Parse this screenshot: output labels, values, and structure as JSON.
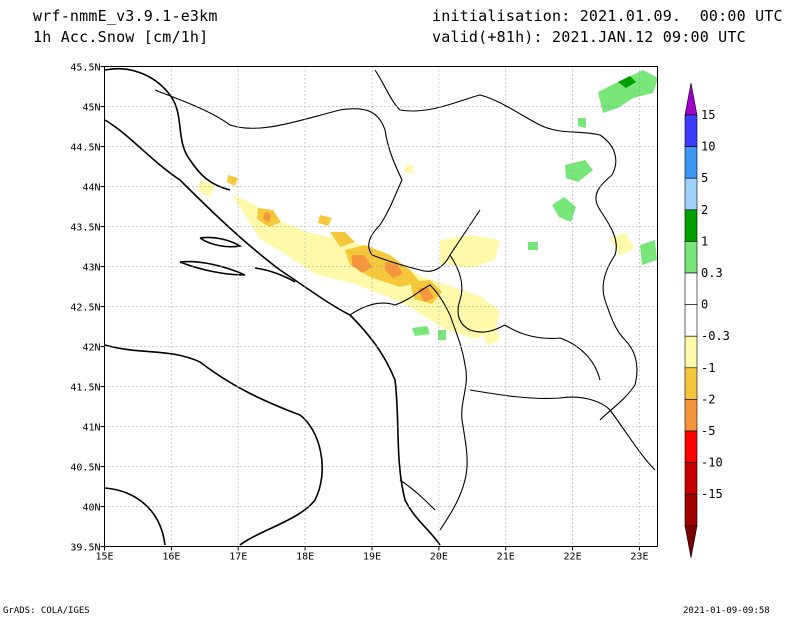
{
  "header": {
    "model": "wrf-nmmE_v3.9.1-e3km",
    "field": "1h Acc.Snow [cm/1h]",
    "init": "initialisation: 2021.01.09.  00:00 UTC",
    "valid": "valid(+81h): 2021.JAN.12 09:00 UTC"
  },
  "footer": {
    "credit": "GrADS: COLA/IGES",
    "stamp": "2021-01-09-09:58"
  },
  "map": {
    "lon_ticks": [
      "15E",
      "16E",
      "17E",
      "18E",
      "19E",
      "20E",
      "21E",
      "22E",
      "23E"
    ],
    "lat_ticks": [
      "39.5N",
      "40N",
      "40.5N",
      "41N",
      "41.5N",
      "42N",
      "42.5N",
      "43N",
      "43.5N",
      "44N",
      "44.5N",
      "45N",
      "45.5N"
    ],
    "grid": true,
    "border_color": "#000000"
  },
  "colorbar": {
    "levels": [
      "15",
      "10",
      "5",
      "2",
      "1",
      "0.3",
      "0",
      "-0.3",
      "-1",
      "-2",
      "-5",
      "-10",
      "-15"
    ],
    "colors": [
      "#a000c8",
      "#3c3cff",
      "#3c96f5",
      "#a0d2ff",
      "#00a000",
      "#78e678",
      "#ffffff",
      "#ffffff",
      "#fffaaa",
      "#f5c83c",
      "#f5963c",
      "#ff0000",
      "#c80000",
      "#a00000",
      "#780000"
    ]
  }
}
